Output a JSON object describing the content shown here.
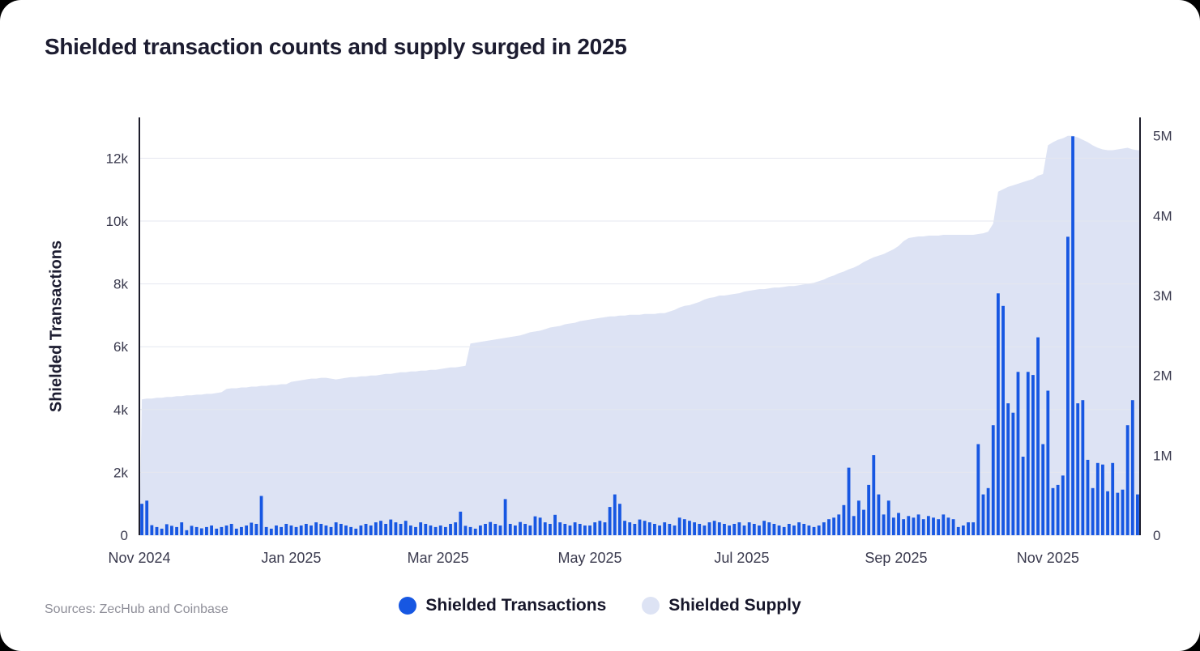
{
  "page": {
    "title": "Shielded transaction counts and supply surged in 2025"
  },
  "footer": {
    "source": "Sources: ZecHub and Coinbase"
  },
  "legend": {
    "transactions": "Shielded Transactions",
    "supply": "Shielded Supply"
  },
  "chart_data": {
    "type": "bar",
    "title": "Shielded transaction counts and supply surged in 2025",
    "grid": "horizontal",
    "legend_position": "bottom-center",
    "total_days": 402,
    "x_ticks": [
      {
        "label": "Nov 2024",
        "day": 0
      },
      {
        "label": "Jan 2025",
        "day": 61
      },
      {
        "label": "Mar 2025",
        "day": 120
      },
      {
        "label": "May 2025",
        "day": 181
      },
      {
        "label": "Jul 2025",
        "day": 242
      },
      {
        "label": "Sep 2025",
        "day": 304
      },
      {
        "label": "Nov 2025",
        "day": 365
      }
    ],
    "left_axis": {
      "title": "Shielded Transactions",
      "max": 13300,
      "ticks": [
        {
          "value": 0,
          "label": "0"
        },
        {
          "value": 2000,
          "label": "2k"
        },
        {
          "value": 4000,
          "label": "4k"
        },
        {
          "value": 6000,
          "label": "6k"
        },
        {
          "value": 8000,
          "label": "8k"
        },
        {
          "value": 10000,
          "label": "10k"
        },
        {
          "value": 12000,
          "label": "12k"
        }
      ]
    },
    "right_axis": {
      "title": "Shielded Supply",
      "max_millions": 5.23,
      "ticks": [
        {
          "value_millions": 0,
          "label": "0"
        },
        {
          "value_millions": 1,
          "label": "1M"
        },
        {
          "value_millions": 2,
          "label": "2M"
        },
        {
          "value_millions": 3,
          "label": "3M"
        },
        {
          "value_millions": 4,
          "label": "4M"
        },
        {
          "value_millions": 5,
          "label": "5M"
        }
      ]
    },
    "series": [
      {
        "name": "Shielded Transactions",
        "type": "bar",
        "axis": "left",
        "color": "#1757e2",
        "values": [
          1000,
          1100,
          320,
          260,
          210,
          350,
          300,
          260,
          410,
          160,
          300,
          260,
          220,
          260,
          310,
          210,
          260,
          310,
          360,
          210,
          260,
          310,
          400,
          360,
          1250,
          260,
          210,
          310,
          260,
          360,
          310,
          260,
          310,
          360,
          310,
          410,
          360,
          310,
          260,
          410,
          360,
          310,
          260,
          210,
          310,
          360,
          310,
          410,
          460,
          360,
          500,
          410,
          360,
          460,
          310,
          260,
          410,
          360,
          310,
          260,
          310,
          260,
          360,
          410,
          750,
          300,
          260,
          210,
          310,
          360,
          420,
          360,
          310,
          1150,
          360,
          310,
          420,
          360,
          310,
          600,
          560,
          410,
          360,
          650,
          410,
          360,
          310,
          410,
          360,
          310,
          310,
          410,
          460,
          410,
          900,
          1300,
          1000,
          460,
          410,
          360,
          500,
          460,
          410,
          360,
          310,
          410,
          360,
          310,
          560,
          510,
          460,
          410,
          360,
          310,
          410,
          460,
          410,
          360,
          310,
          360,
          410,
          310,
          410,
          360,
          310,
          460,
          410,
          360,
          310,
          260,
          360,
          310,
          410,
          360,
          310,
          260,
          310,
          410,
          510,
          560,
          660,
          960,
          2150,
          610,
          1100,
          810,
          1600,
          2550,
          1300,
          660,
          1100,
          560,
          710,
          510,
          610,
          560,
          660,
          510,
          610,
          560,
          510,
          660,
          560,
          510,
          260,
          310,
          410,
          410,
          2900,
          1300,
          1500,
          3500,
          7700,
          7300,
          4200,
          3900,
          5200,
          2500,
          5200,
          5100,
          6300,
          2900,
          4600,
          1500,
          1600,
          1900,
          9500,
          12700,
          4200,
          4300,
          2400,
          1500,
          2300,
          2250,
          1400,
          2300,
          1350,
          1450,
          3500,
          4300,
          1300
        ]
      },
      {
        "name": "Shielded Supply",
        "type": "area",
        "axis": "right",
        "color": "#dde3f4",
        "values_millions": [
          1.7,
          1.71,
          1.71,
          1.72,
          1.72,
          1.73,
          1.73,
          1.74,
          1.74,
          1.75,
          1.75,
          1.76,
          1.76,
          1.77,
          1.77,
          1.78,
          1.79,
          1.83,
          1.84,
          1.84,
          1.85,
          1.85,
          1.86,
          1.86,
          1.87,
          1.87,
          1.88,
          1.88,
          1.89,
          1.89,
          1.92,
          1.93,
          1.94,
          1.95,
          1.96,
          1.96,
          1.97,
          1.97,
          1.96,
          1.95,
          1.96,
          1.97,
          1.98,
          1.98,
          1.99,
          1.99,
          2.0,
          2.0,
          2.01,
          2.02,
          2.02,
          2.03,
          2.04,
          2.04,
          2.05,
          2.05,
          2.06,
          2.06,
          2.07,
          2.07,
          2.08,
          2.09,
          2.1,
          2.1,
          2.11,
          2.12,
          2.4,
          2.41,
          2.42,
          2.43,
          2.44,
          2.45,
          2.46,
          2.47,
          2.48,
          2.49,
          2.5,
          2.52,
          2.54,
          2.55,
          2.56,
          2.58,
          2.6,
          2.61,
          2.62,
          2.64,
          2.65,
          2.66,
          2.68,
          2.69,
          2.7,
          2.71,
          2.72,
          2.73,
          2.74,
          2.74,
          2.75,
          2.75,
          2.76,
          2.76,
          2.76,
          2.77,
          2.77,
          2.77,
          2.78,
          2.78,
          2.8,
          2.82,
          2.85,
          2.87,
          2.88,
          2.9,
          2.92,
          2.95,
          2.97,
          2.98,
          3.0,
          3.0,
          3.01,
          3.02,
          3.03,
          3.05,
          3.06,
          3.07,
          3.08,
          3.08,
          3.09,
          3.1,
          3.1,
          3.11,
          3.12,
          3.12,
          3.13,
          3.14,
          3.15,
          3.16,
          3.18,
          3.2,
          3.23,
          3.25,
          3.28,
          3.3,
          3.33,
          3.35,
          3.38,
          3.42,
          3.45,
          3.48,
          3.5,
          3.52,
          3.55,
          3.58,
          3.62,
          3.68,
          3.72,
          3.73,
          3.74,
          3.74,
          3.75,
          3.75,
          3.75,
          3.76,
          3.76,
          3.76,
          3.76,
          3.76,
          3.76,
          3.76,
          3.77,
          3.78,
          3.8,
          3.9,
          4.3,
          4.33,
          4.36,
          4.38,
          4.4,
          4.42,
          4.44,
          4.46,
          4.5,
          4.52,
          4.88,
          4.92,
          4.95,
          4.97,
          5.0,
          5.0,
          4.98,
          4.95,
          4.92,
          4.88,
          4.85,
          4.83,
          4.82,
          4.82,
          4.83,
          4.84,
          4.85,
          4.83,
          4.82
        ]
      }
    ]
  }
}
